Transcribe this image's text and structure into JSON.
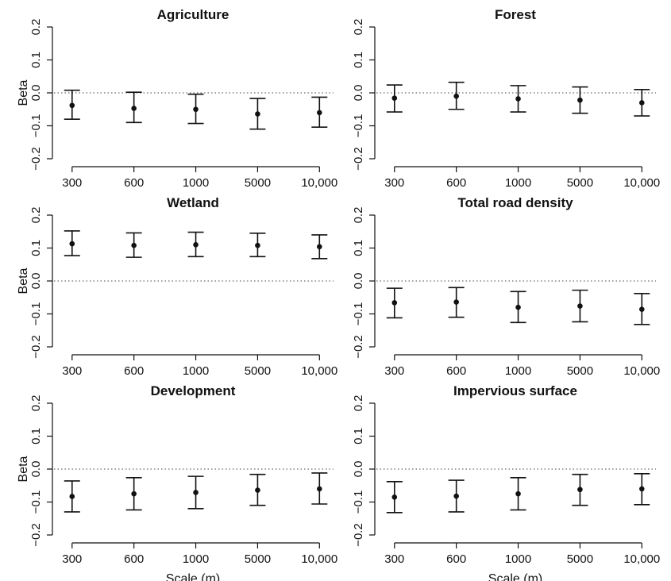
{
  "figure": {
    "x_axis_label": "Scale (m)",
    "y_axis_label": "Beta"
  },
  "chart_data": [
    {
      "type": "scatter",
      "title": "Agriculture",
      "xlabel": "",
      "ylabel": "Beta",
      "categories": [
        "300",
        "600",
        "1000",
        "5000",
        "10,000"
      ],
      "yticks": [
        "−0.2",
        "−0.1",
        "0.0",
        "0.1",
        "0.2"
      ],
      "ylim": [
        -0.2,
        0.2
      ],
      "reference_line": 0.0,
      "estimates": [
        -0.038,
        -0.047,
        -0.05,
        -0.064,
        -0.06
      ],
      "ci_lower": [
        -0.08,
        -0.09,
        -0.093,
        -0.11,
        -0.104
      ],
      "ci_upper": [
        0.008,
        0.002,
        -0.004,
        -0.017,
        -0.013
      ]
    },
    {
      "type": "scatter",
      "title": "Forest",
      "xlabel": "",
      "ylabel": "",
      "categories": [
        "300",
        "600",
        "1000",
        "5000",
        "10,000"
      ],
      "yticks": [
        "−0.2",
        "−0.1",
        "0.0",
        "0.1",
        "0.2"
      ],
      "ylim": [
        -0.2,
        0.2
      ],
      "reference_line": 0.0,
      "estimates": [
        -0.016,
        -0.01,
        -0.018,
        -0.022,
        -0.03
      ],
      "ci_lower": [
        -0.058,
        -0.05,
        -0.058,
        -0.062,
        -0.07
      ],
      "ci_upper": [
        0.024,
        0.032,
        0.022,
        0.018,
        0.01
      ]
    },
    {
      "type": "scatter",
      "title": "Wetland",
      "xlabel": "",
      "ylabel": "Beta",
      "categories": [
        "300",
        "600",
        "1000",
        "5000",
        "10,000"
      ],
      "yticks": [
        "−0.2",
        "−0.1",
        "0.0",
        "0.1",
        "0.2"
      ],
      "ylim": [
        -0.2,
        0.2
      ],
      "reference_line": 0.0,
      "estimates": [
        0.113,
        0.108,
        0.11,
        0.108,
        0.104
      ],
      "ci_lower": [
        0.077,
        0.072,
        0.074,
        0.074,
        0.068
      ],
      "ci_upper": [
        0.152,
        0.146,
        0.148,
        0.145,
        0.14
      ]
    },
    {
      "type": "scatter",
      "title": "Total road density",
      "xlabel": "",
      "ylabel": "",
      "categories": [
        "300",
        "600",
        "1000",
        "5000",
        "10,000"
      ],
      "yticks": [
        "−0.2",
        "−0.1",
        "0.0",
        "0.1",
        "0.2"
      ],
      "ylim": [
        -0.2,
        0.2
      ],
      "reference_line": 0.0,
      "estimates": [
        -0.066,
        -0.064,
        -0.08,
        -0.076,
        -0.086
      ],
      "ci_lower": [
        -0.112,
        -0.11,
        -0.126,
        -0.124,
        -0.132
      ],
      "ci_upper": [
        -0.022,
        -0.02,
        -0.032,
        -0.028,
        -0.038
      ]
    },
    {
      "type": "scatter",
      "title": "Development",
      "xlabel": "Scale (m)",
      "ylabel": "Beta",
      "categories": [
        "300",
        "600",
        "1000",
        "5000",
        "10,000"
      ],
      "yticks": [
        "−0.2",
        "−0.1",
        "0.0",
        "0.1",
        "0.2"
      ],
      "ylim": [
        -0.2,
        0.2
      ],
      "reference_line": 0.0,
      "estimates": [
        -0.083,
        -0.075,
        -0.071,
        -0.064,
        -0.06
      ],
      "ci_lower": [
        -0.13,
        -0.124,
        -0.12,
        -0.11,
        -0.106
      ],
      "ci_upper": [
        -0.036,
        -0.026,
        -0.022,
        -0.016,
        -0.012
      ]
    },
    {
      "type": "scatter",
      "title": "Impervious surface",
      "xlabel": "Scale (m)",
      "ylabel": "",
      "categories": [
        "300",
        "600",
        "1000",
        "5000",
        "10,000"
      ],
      "yticks": [
        "−0.2",
        "−0.1",
        "0.0",
        "0.1",
        "0.2"
      ],
      "ylim": [
        -0.2,
        0.2
      ],
      "reference_line": 0.0,
      "estimates": [
        -0.085,
        -0.082,
        -0.075,
        -0.062,
        -0.06
      ],
      "ci_lower": [
        -0.132,
        -0.13,
        -0.124,
        -0.11,
        -0.108
      ],
      "ci_upper": [
        -0.038,
        -0.034,
        -0.026,
        -0.016,
        -0.014
      ]
    }
  ]
}
